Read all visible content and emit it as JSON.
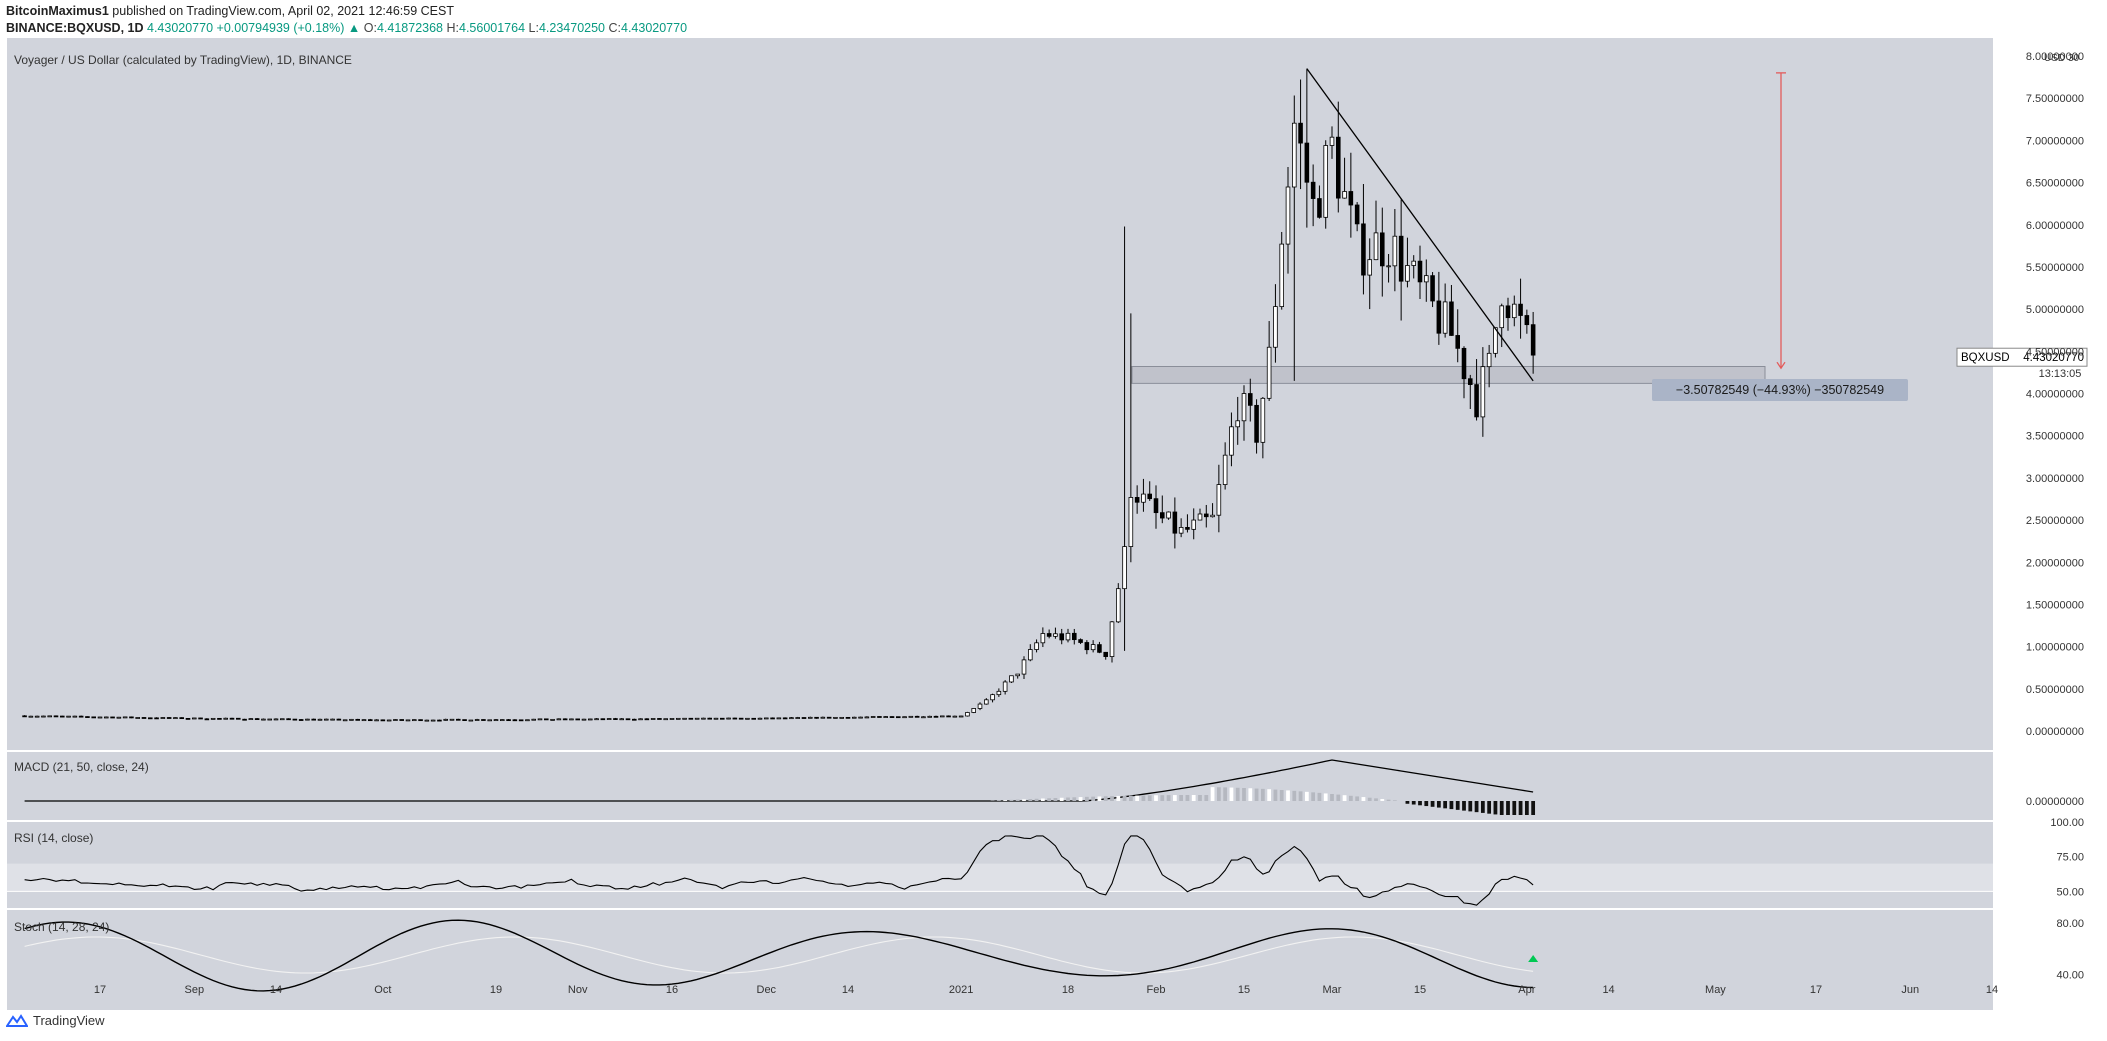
{
  "header": {
    "author": "BitcoinMaximus1",
    "published_text": "published on TradingView.com, April 02, 2021 12:46:59 CEST",
    "symbol": "BINANCE:BQXUSD, 1D",
    "price": "4.43020770",
    "change": "+0.00794939 (+0.18%)",
    "o_label": "O:",
    "o_value": "4.41872368",
    "h_label": "H:",
    "h_value": "4.56001764",
    "l_label": "L:",
    "l_value": "4.23470250",
    "c_label": "C:",
    "c_value": "4.43020770",
    "up_arrow": "▲"
  },
  "chart_data": [
    {
      "type": "candlestick",
      "title": "Voyager / US Dollar (calculated by TradingView), 1D, BINANCE",
      "y_axis_unit": "USD",
      "y_axis_top_label": "30",
      "y_ticks": [
        "0.00000000",
        "0.50000000",
        "1.00000000",
        "1.50000000",
        "2.00000000",
        "2.50000000",
        "3.00000000",
        "3.50000000",
        "4.00000000",
        "4.50000000",
        "5.00000000",
        "5.50000000",
        "6.00000000",
        "6.50000000",
        "7.00000000",
        "7.50000000",
        "8.00000000"
      ],
      "ylim": [
        0,
        8
      ],
      "x_ticks": [
        "17",
        "Sep",
        "14",
        "Oct",
        "19",
        "Nov",
        "16",
        "Dec",
        "14",
        "2021",
        "18",
        "Feb",
        "15",
        "Mar",
        "15",
        "Apr",
        "14",
        "May",
        "17",
        "Jun",
        "14"
      ],
      "x_tick_dates": [
        "2020-08-17",
        "2020-09-01",
        "2020-09-14",
        "2020-10-01",
        "2020-10-19",
        "2020-11-01",
        "2020-11-16",
        "2020-12-01",
        "2020-12-14",
        "2021-01-01",
        "2021-01-18",
        "2021-02-01",
        "2021-02-15",
        "2021-03-01",
        "2021-03-15",
        "2021-04-01",
        "2021-04-14",
        "2021-05-01",
        "2021-05-17",
        "2021-06-01",
        "2021-06-14"
      ],
      "close_series": [
        {
          "date": "2020-08-05",
          "close": 0.18
        },
        {
          "date": "2020-09-01",
          "close": 0.15
        },
        {
          "date": "2020-10-01",
          "close": 0.13
        },
        {
          "date": "2020-11-01",
          "close": 0.14
        },
        {
          "date": "2020-12-01",
          "close": 0.15
        },
        {
          "date": "2021-01-01",
          "close": 0.18
        },
        {
          "date": "2021-01-05",
          "close": 0.35
        },
        {
          "date": "2021-01-10",
          "close": 0.7
        },
        {
          "date": "2021-01-14",
          "close": 1.15
        },
        {
          "date": "2021-01-18",
          "close": 1.1
        },
        {
          "date": "2021-01-24",
          "close": 0.92
        },
        {
          "date": "2021-01-27",
          "close": 2.1
        },
        {
          "date": "2021-01-28",
          "close": 2.9
        },
        {
          "date": "2021-02-01",
          "close": 2.55
        },
        {
          "date": "2021-02-05",
          "close": 2.35
        },
        {
          "date": "2021-02-10",
          "close": 2.5
        },
        {
          "date": "2021-02-14",
          "close": 3.9
        },
        {
          "date": "2021-02-17",
          "close": 3.55
        },
        {
          "date": "2021-02-19",
          "close": 4.4
        },
        {
          "date": "2021-02-21",
          "close": 5.9
        },
        {
          "date": "2021-02-23",
          "close": 7.2
        },
        {
          "date": "2021-02-26",
          "close": 6.2
        },
        {
          "date": "2021-03-01",
          "close": 6.9
        },
        {
          "date": "2021-03-05",
          "close": 5.7
        },
        {
          "date": "2021-03-10",
          "close": 5.8
        },
        {
          "date": "2021-03-15",
          "close": 5.2
        },
        {
          "date": "2021-03-20",
          "close": 4.7
        },
        {
          "date": "2021-03-24",
          "close": 3.95
        },
        {
          "date": "2021-03-26",
          "close": 4.3
        },
        {
          "date": "2021-03-28",
          "close": 5.3
        },
        {
          "date": "2021-03-31",
          "close": 4.8
        },
        {
          "date": "2021-04-02",
          "close": 4.43
        }
      ],
      "support_zone": [
        4.12,
        4.32
      ],
      "trendline": {
        "from": {
          "date": "2021-02-25",
          "price": 7.85
        },
        "to": {
          "date": "2021-04-02",
          "price": 4.15
        }
      },
      "measure": {
        "from_price": 7.8,
        "to_price": 4.3,
        "label": "−3.50782549 (−44.93%) −350782549"
      },
      "price_label": {
        "symbol": "BQXUSD",
        "value": "4.43020770",
        "countdown": "13:13:05"
      }
    },
    {
      "type": "histogram",
      "title": "MACD (21, 50, close, 24)",
      "y_ticks": [
        "0.00000000"
      ],
      "note": "MACD line rises from 0 around late Jan 2021 to a peak in early March, declining toward April; histogram turns negative from mid-March."
    },
    {
      "type": "line",
      "title": "RSI (14, close)",
      "y_ticks": [
        "100.00",
        "75.00",
        "50.00"
      ],
      "band": [
        50,
        70
      ],
      "ylim": [
        38,
        100
      ]
    },
    {
      "type": "line",
      "title": "Stoch (14, 28, 24)",
      "y_ticks": [
        "80.00",
        "40.00"
      ],
      "ylim": [
        20,
        90
      ]
    }
  ],
  "footer": {
    "brand": "TradingView"
  },
  "colors": {
    "panel_bg": "#d1d4dc",
    "candle_up": "#ffffff",
    "candle_down": "#000000",
    "measure_box": "#aab4c7",
    "measure_arrow": "#e35b5b",
    "signal": "#00c853"
  }
}
